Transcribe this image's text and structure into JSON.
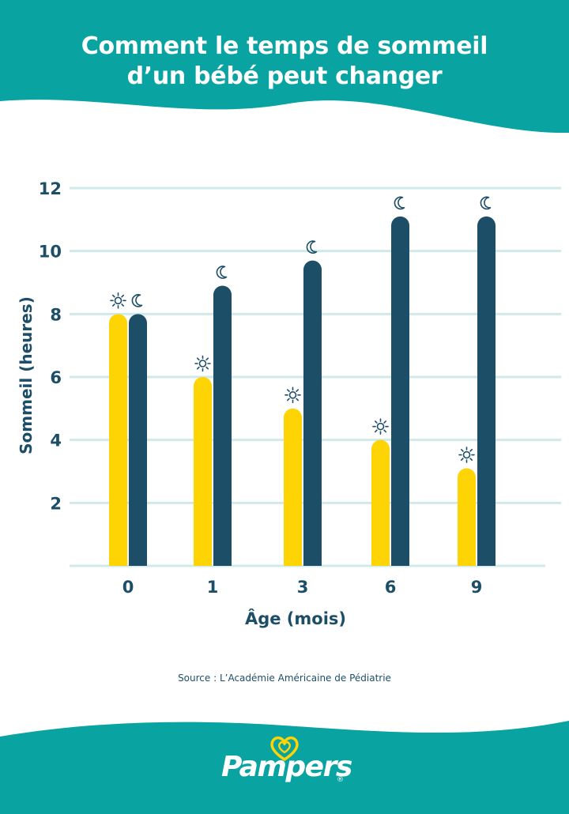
{
  "header": {
    "title_line1": "Comment le temps de sommeil",
    "title_line2": "d’un bébé peut changer"
  },
  "chart_data": {
    "type": "bar",
    "title": "Comment le temps de sommeil d’un bébé peut changer",
    "xlabel": "Âge (mois)",
    "ylabel": "Sommeil (heures)",
    "categories": [
      "0",
      "1",
      "3",
      "6",
      "9"
    ],
    "ylim": [
      0,
      12
    ],
    "yticks": [
      "2",
      "4",
      "6",
      "8",
      "10",
      "12"
    ],
    "series": [
      {
        "icon": "sun-icon",
        "values": [
          8,
          6,
          5,
          4,
          3.1
        ],
        "color": "#fed404"
      },
      {
        "icon": "moon-icon",
        "values": [
          8,
          8.9,
          9.7,
          11.1,
          11.1
        ],
        "color": "#1d4e68"
      }
    ],
    "grid": true,
    "legend": "none"
  },
  "source": "Source : L’Académie Américaine de Pédiatrie",
  "footer": {
    "logo_text": "Pampers",
    "logo_reg": "®",
    "logo_icon": "heart-icon"
  },
  "colors": {
    "teal": "#09a3a1",
    "navy": "#1d4e68",
    "yellow": "#fed404",
    "grid": "#cfeae8"
  }
}
